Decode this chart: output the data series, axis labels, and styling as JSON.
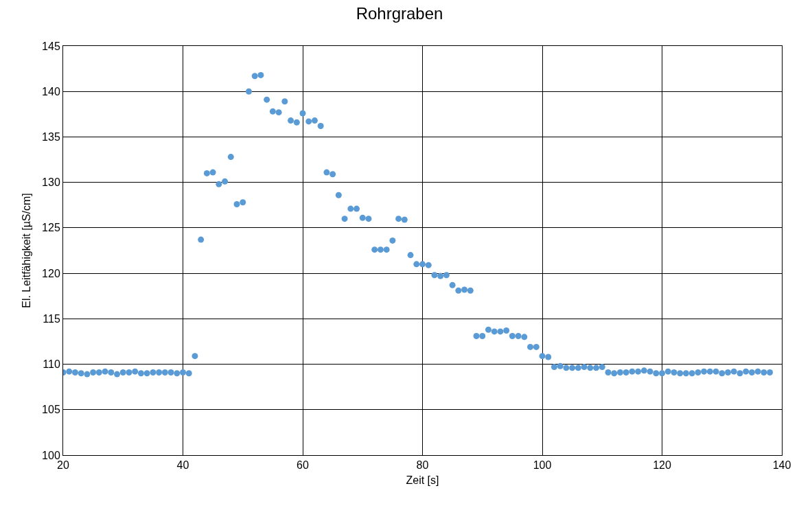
{
  "chart_data": {
    "type": "scatter",
    "title": "Rohrgraben",
    "xlabel": "Zeit [s]",
    "ylabel": "El. Leitfähigkeit [µS/cm]",
    "x": [
      20,
      21,
      22,
      23,
      24,
      25,
      26,
      27,
      28,
      29,
      30,
      31,
      32,
      33,
      34,
      35,
      36,
      37,
      38,
      39,
      40,
      41,
      42,
      43,
      44,
      45,
      46,
      47,
      48,
      49,
      50,
      51,
      52,
      53,
      54,
      55,
      56,
      57,
      58,
      59,
      60,
      61,
      62,
      63,
      64,
      65,
      66,
      67,
      68,
      69,
      70,
      71,
      72,
      73,
      74,
      75,
      76,
      77,
      78,
      79,
      80,
      81,
      82,
      83,
      84,
      85,
      86,
      87,
      88,
      89,
      90,
      91,
      92,
      93,
      94,
      95,
      96,
      97,
      98,
      99,
      100,
      101,
      102,
      103,
      104,
      105,
      106,
      107,
      108,
      109,
      110,
      111,
      112,
      113,
      114,
      115,
      116,
      117,
      118,
      119,
      120,
      121,
      122,
      123,
      124,
      125,
      126,
      127,
      128,
      129,
      130,
      131,
      132,
      133,
      134,
      135,
      136,
      137,
      138
    ],
    "series": [
      {
        "color": "#5b9bd5",
        "values": [
          109.1,
          109.2,
          109.1,
          109.0,
          108.9,
          109.1,
          109.1,
          109.2,
          109.1,
          108.9,
          109.1,
          109.1,
          109.2,
          109.0,
          109.0,
          109.1,
          109.1,
          109.1,
          109.1,
          109.0,
          109.1,
          109.0,
          110.9,
          123.7,
          131.0,
          131.1,
          129.8,
          130.1,
          132.8,
          127.6,
          127.8,
          140.0,
          141.7,
          141.8,
          139.1,
          137.8,
          137.7,
          138.9,
          136.8,
          136.6,
          137.6,
          136.7,
          136.8,
          136.2,
          131.1,
          130.9,
          128.6,
          126.0,
          127.1,
          127.1,
          126.1,
          126.0,
          122.6,
          122.6,
          122.6,
          123.6,
          126.0,
          125.9,
          122.0,
          121.0,
          121.0,
          120.9,
          119.8,
          119.7,
          119.8,
          118.7,
          118.1,
          118.2,
          118.1,
          113.1,
          113.1,
          113.8,
          113.6,
          113.6,
          113.7,
          113.1,
          113.1,
          113.0,
          111.9,
          111.9,
          110.9,
          110.8,
          109.7,
          109.8,
          109.6,
          109.6,
          109.6,
          109.7,
          109.6,
          109.6,
          109.7,
          109.1,
          109.0,
          109.1,
          109.1,
          109.2,
          109.2,
          109.3,
          109.2,
          109.0,
          109.0,
          109.2,
          109.1,
          109.0,
          109.0,
          109.0,
          109.1,
          109.2,
          109.2,
          109.2,
          109.0,
          109.1,
          109.2,
          109.0,
          109.2,
          109.1,
          109.2,
          109.1,
          109.1
        ]
      }
    ],
    "xlim": [
      20,
      140
    ],
    "xticks": [
      20,
      40,
      60,
      80,
      100,
      120,
      140
    ],
    "ylim": [
      100,
      145
    ],
    "yticks": [
      100,
      105,
      110,
      115,
      120,
      125,
      130,
      135,
      140,
      145
    ],
    "grid": true,
    "marker": "circle"
  }
}
